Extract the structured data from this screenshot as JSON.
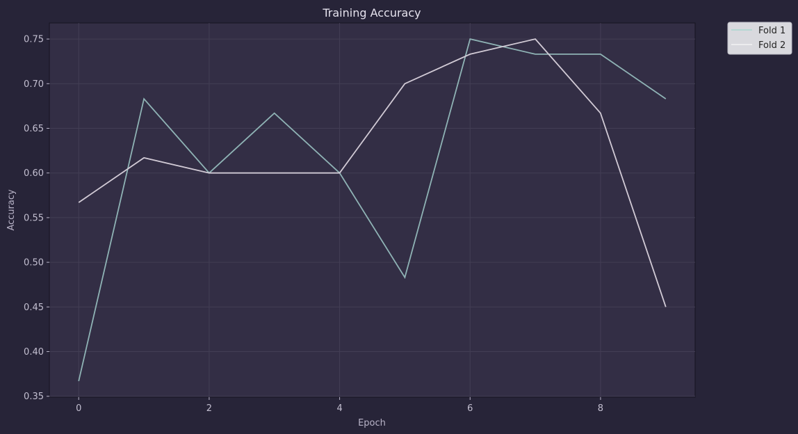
{
  "chart_data": {
    "type": "line",
    "title": "Training Accuracy",
    "xlabel": "Epoch",
    "ylabel": "Accuracy",
    "x": [
      0,
      1,
      2,
      3,
      4,
      5,
      6,
      7,
      8,
      9
    ],
    "xlim": [
      -0.45,
      9.45
    ],
    "ylim": [
      0.349,
      0.768
    ],
    "xticks": [
      0,
      2,
      4,
      6,
      8
    ],
    "yticks": [
      0.35,
      0.4,
      0.45,
      0.5,
      0.55,
      0.6,
      0.65,
      0.7,
      0.75
    ],
    "grid": true,
    "legend_position": "outside-top-right",
    "series": [
      {
        "name": "Fold 1",
        "color": "#8fb3b5",
        "values": [
          0.367,
          0.683,
          0.6,
          0.667,
          0.6,
          0.483,
          0.75,
          0.733,
          0.733,
          0.683
        ]
      },
      {
        "name": "Fold 2",
        "color": "#d2cbd6",
        "values": [
          0.567,
          0.617,
          0.6,
          0.6,
          0.6,
          0.7,
          0.733,
          0.75,
          0.667,
          0.45
        ]
      }
    ]
  },
  "colors": {
    "page_background": "#272438",
    "plot_background": "#332e45",
    "grid": "#433e55",
    "legend_background": "#d9d9de",
    "legend_swatch_fold1": "#a8d8cf"
  }
}
